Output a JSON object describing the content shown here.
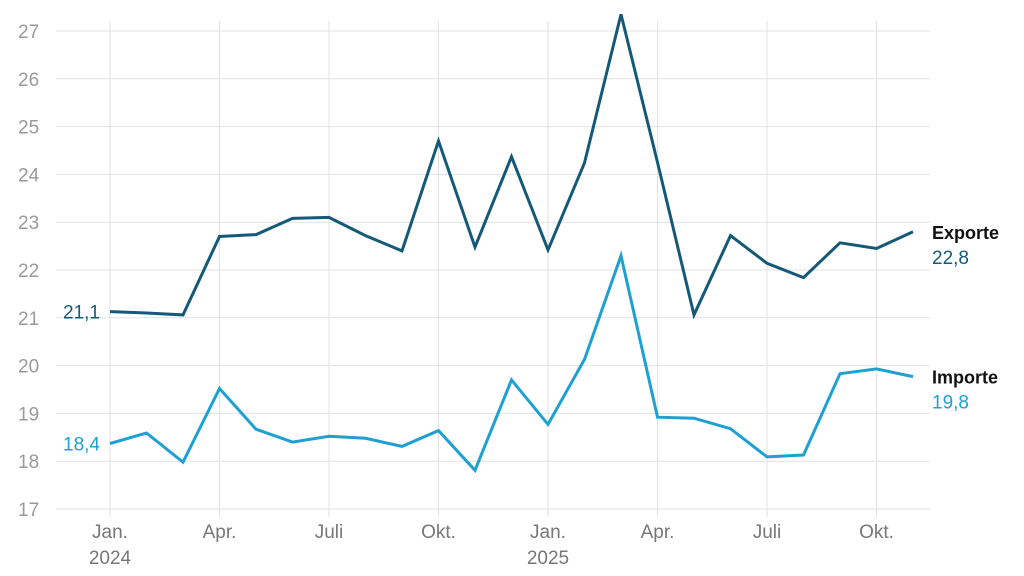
{
  "chart_data": {
    "type": "line",
    "x": [
      "2024-01",
      "2024-02",
      "2024-03",
      "2024-04",
      "2024-05",
      "2024-06",
      "2024-07",
      "2024-08",
      "2024-09",
      "2024-10",
      "2024-11",
      "2024-12",
      "2025-01",
      "2025-02",
      "2025-03",
      "2025-04",
      "2025-05",
      "2025-06",
      "2025-07",
      "2025-08",
      "2025-09",
      "2025-10",
      "2025-11"
    ],
    "x_tick_labels": [
      {
        "x": "2024-01",
        "label": "Jan.",
        "year": "2024"
      },
      {
        "x": "2024-04",
        "label": "Apr.",
        "year": ""
      },
      {
        "x": "2024-07",
        "label": "Juli",
        "year": ""
      },
      {
        "x": "2024-10",
        "label": "Okt.",
        "year": ""
      },
      {
        "x": "2025-01",
        "label": "Jan.",
        "year": "2025"
      },
      {
        "x": "2025-04",
        "label": "Apr.",
        "year": ""
      },
      {
        "x": "2025-07",
        "label": "Juli",
        "year": ""
      },
      {
        "x": "2025-10",
        "label": "Okt.",
        "year": ""
      }
    ],
    "y_ticks": [
      "17",
      "18",
      "19",
      "20",
      "21",
      "22",
      "23",
      "24",
      "25",
      "26",
      "27"
    ],
    "ylim": [
      17,
      27.5
    ],
    "grid": true,
    "series": [
      {
        "name": "Exporte",
        "color": "#145a78",
        "start_label": "21,1",
        "end_label": "22,8",
        "values": [
          21.13,
          21.1,
          21.06,
          22.7,
          22.74,
          23.08,
          23.1,
          22.72,
          22.4,
          24.7,
          22.48,
          24.37,
          22.42,
          24.24,
          27.35,
          24.25,
          21.06,
          22.72,
          22.14,
          21.84,
          22.57,
          22.45,
          22.8
        ]
      },
      {
        "name": "Importe",
        "color": "#1ea0d2",
        "start_label": "18,4",
        "end_label": "19,8",
        "values": [
          18.37,
          18.59,
          17.98,
          19.52,
          18.67,
          18.4,
          18.52,
          18.48,
          18.31,
          18.64,
          17.81,
          19.7,
          18.77,
          20.13,
          22.3,
          18.92,
          18.9,
          18.68,
          18.09,
          18.13,
          19.83,
          19.93,
          19.77
        ]
      }
    ]
  }
}
